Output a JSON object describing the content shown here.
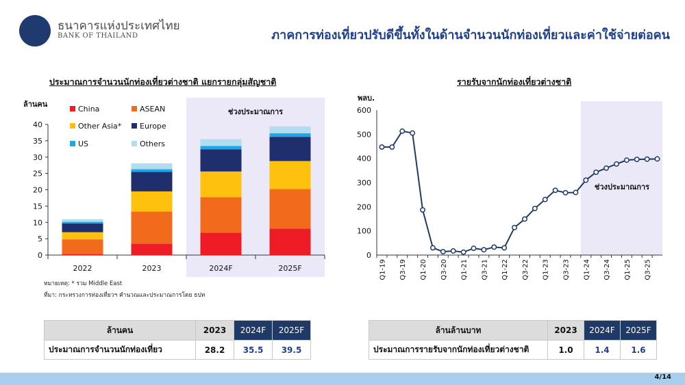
{
  "header": {
    "bank_name_th": "ธนาคารแห่งประเทศไทย",
    "bank_name_en": "BANK OF THAILAND",
    "headline": "ภาคการท่องเที่ยวปรับดีขึ้นทั้งในด้านจำนวนนักท่องเที่ยวและค่าใช้จ่ายต่อคน"
  },
  "colors": {
    "China": "#ee1c25",
    "ASEAN": "#f26b1d",
    "Other Asia*": "#fec10e",
    "Europe": "#1f2f6e",
    "US": "#1aa8e8",
    "Others": "#b2dcef",
    "line": "#1f3a66",
    "forecast_shade": "#ebe8f7"
  },
  "chart_data": [
    {
      "type": "bar",
      "stacked": true,
      "title": "ประมาณการจำนวนนักท่องเที่ยวต่างชาติ แยกรายกลุ่มสัญชาติ",
      "ylabel": "ล้านคน",
      "ylim": [
        0,
        40
      ],
      "yticks": [
        0,
        5,
        10,
        15,
        20,
        25,
        30,
        35,
        40
      ],
      "categories": [
        "2022",
        "2023",
        "2024F",
        "2025F"
      ],
      "forecast_label": "ช่วงประมาณการ",
      "legend_position": "top-left",
      "series": [
        {
          "name": "China",
          "values": [
            0.3,
            3.5,
            6.8,
            8.1
          ]
        },
        {
          "name": "ASEAN",
          "values": [
            4.5,
            9.8,
            10.9,
            12.1
          ]
        },
        {
          "name": "Other Asia*",
          "values": [
            2.2,
            6.2,
            7.9,
            8.6
          ]
        },
        {
          "name": "Europe",
          "values": [
            2.7,
            6.0,
            6.8,
            7.4
          ]
        },
        {
          "name": "US",
          "values": [
            0.5,
            0.8,
            1.0,
            1.1
          ]
        },
        {
          "name": "Others",
          "values": [
            0.8,
            1.8,
            2.1,
            2.1
          ]
        }
      ],
      "notes": [
        "หมายเหตุ: * รวม Middle East",
        "ที่มา: กระทรวงการท่องเที่ยวฯ คำนวณและประมาณการโดย ธปท"
      ]
    },
    {
      "type": "line",
      "title": "รายรับจากนักท่องเที่ยวต่างชาติ",
      "ylabel": "พลบ.",
      "ylim": [
        0,
        600
      ],
      "yticks": [
        0,
        100,
        200,
        300,
        400,
        500,
        600
      ],
      "forecast_label": "ช่วงประมาณการ",
      "x": [
        "Q1-19",
        "Q2-19",
        "Q3-19",
        "Q4-19",
        "Q1-20",
        "Q2-20",
        "Q3-20",
        "Q4-20",
        "Q1-21",
        "Q2-21",
        "Q3-21",
        "Q4-21",
        "Q1-22",
        "Q2-22",
        "Q3-22",
        "Q4-22",
        "Q1-23",
        "Q2-23",
        "Q3-23",
        "Q4-23",
        "Q1-24",
        "Q2-24",
        "Q3-24",
        "Q4-24",
        "Q1-25",
        "Q2-25",
        "Q3-25",
        "Q4-25"
      ],
      "xtick_labels": [
        "Q1-19",
        "Q3-19",
        "Q1-20",
        "Q3-20",
        "Q1-21",
        "Q3-21",
        "Q1-22",
        "Q3-22",
        "Q1-23",
        "Q3-23",
        "Q1-24",
        "Q3-24",
        "Q1-25",
        "Q3-25"
      ],
      "forecast_start": "Q1-24",
      "values": [
        447,
        447,
        513,
        505,
        187,
        30,
        14,
        17,
        12,
        28,
        22,
        33,
        30,
        114,
        149,
        193,
        230,
        268,
        258,
        259,
        310,
        343,
        360,
        377,
        393,
        396,
        397,
        398
      ]
    }
  ],
  "tables": {
    "visitors": {
      "header": [
        "ล้านคน",
        "2023",
        "2024F",
        "2025F"
      ],
      "row": [
        "ประมาณการจำนวนนักท่องเที่ยว",
        "28.2",
        "35.5",
        "39.5"
      ]
    },
    "receipts": {
      "header": [
        "ล้านล้านบาท",
        "2023",
        "2024F",
        "2025F"
      ],
      "row": [
        "ประมาณการรายรับจากนักท่องเที่ยวต่างชาติ",
        "1.0",
        "1.4",
        "1.6"
      ]
    }
  },
  "footer": {
    "page": "4/14"
  }
}
